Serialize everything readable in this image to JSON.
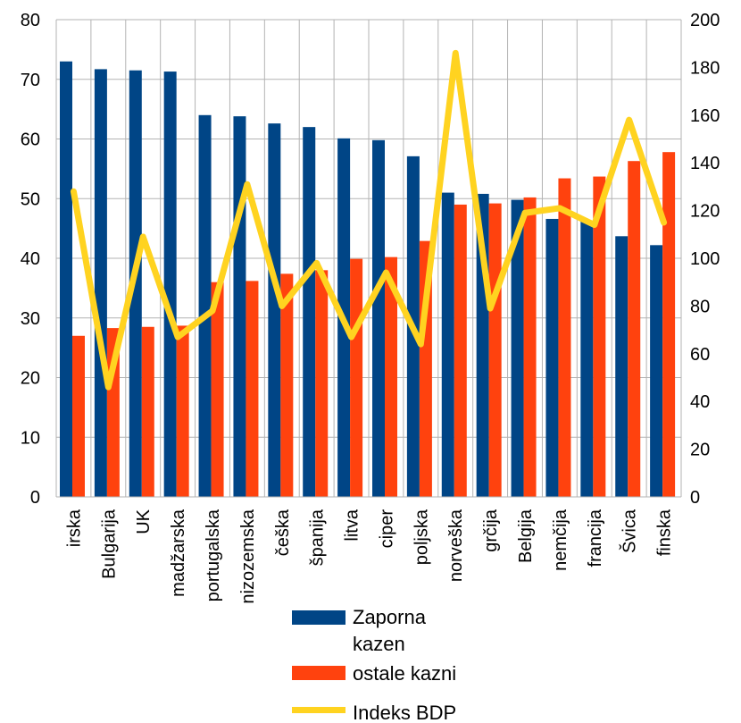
{
  "chart_data": {
    "type": "bar",
    "title": "",
    "xlabel": "",
    "ylabel": "",
    "categories": [
      "irska",
      "Bulgarija",
      "UK",
      "madžarska",
      "portugalska",
      "nizozemska",
      "češka",
      "španija",
      "litva",
      "ciper",
      "poljska",
      "norveška",
      "grčija",
      "Belgija",
      "nemčija",
      "francija",
      "Švica",
      "finska"
    ],
    "series": [
      {
        "name": "Zaporna kazen",
        "type": "bar",
        "axis": "left",
        "color": "#004586",
        "values": [
          73.0,
          71.7,
          71.5,
          71.3,
          64.0,
          63.8,
          62.6,
          62.0,
          60.1,
          59.8,
          57.1,
          51.0,
          50.8,
          49.8,
          46.6,
          46.3,
          43.7,
          42.2
        ]
      },
      {
        "name": "ostale kazni",
        "type": "bar",
        "axis": "left",
        "color": "#ff420e",
        "values": [
          27.0,
          28.3,
          28.5,
          28.7,
          36.0,
          36.2,
          37.4,
          38.0,
          39.9,
          40.2,
          42.9,
          49.0,
          49.2,
          50.2,
          53.4,
          53.7,
          56.3,
          57.8
        ]
      },
      {
        "name": "Indeks BDP",
        "type": "line",
        "axis": "right",
        "color": "#ffd320",
        "values": [
          128,
          46,
          109,
          67,
          78,
          131,
          80,
          98,
          67,
          94,
          64,
          186,
          79,
          119,
          121,
          114,
          158,
          115
        ]
      }
    ],
    "ylim": [
      0,
      80
    ],
    "y2lim": [
      0,
      200
    ],
    "yticks": [
      "0",
      "10",
      "20",
      "30",
      "40",
      "50",
      "60",
      "70",
      "80"
    ],
    "y2ticks": [
      "0",
      "20",
      "40",
      "60",
      "80",
      "100",
      "120",
      "140",
      "160",
      "180",
      "200"
    ],
    "grid": true,
    "legend_position": "bottom"
  },
  "legend": {
    "zaporna_line1": "Zaporna",
    "zaporna_line2": "kazen",
    "ostale": "ostale kazni",
    "indeks": "Indeks BDP"
  }
}
